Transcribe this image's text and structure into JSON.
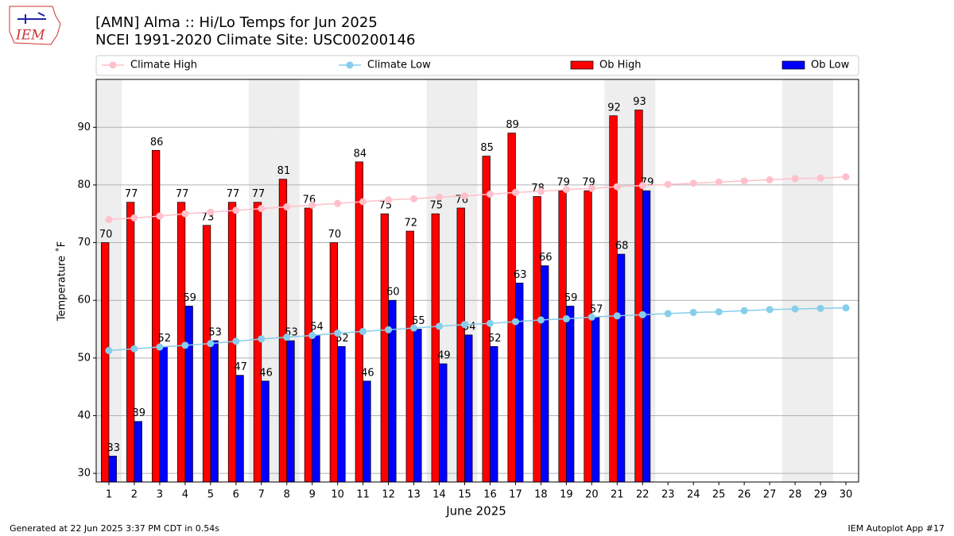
{
  "chart_data": {
    "type": "bar",
    "title": "[AMN] Alma :: Hi/Lo Temps for Jun 2025",
    "subtitle": "NCEI 1991-2020 Climate Site: USC00200146",
    "logo": "IEM",
    "x_label": "June 2025",
    "y_label": "Temperature ˚F",
    "footer_left": "Generated at 22 Jun 2025 3:37 PM CDT in 0.54s",
    "footer_right": "IEM Autoplot App #17",
    "x": [
      1,
      2,
      3,
      4,
      5,
      6,
      7,
      8,
      9,
      10,
      11,
      12,
      13,
      14,
      15,
      16,
      17,
      18,
      19,
      20,
      21,
      22,
      23,
      24,
      25,
      26,
      27,
      28,
      29,
      30
    ],
    "xlim": [
      0.5,
      30.5
    ],
    "xticks": [
      1,
      2,
      3,
      4,
      5,
      6,
      7,
      8,
      9,
      10,
      11,
      12,
      13,
      14,
      15,
      16,
      17,
      18,
      19,
      20,
      21,
      22,
      23,
      24,
      25,
      26,
      27,
      28,
      29,
      30
    ],
    "ylim": [
      28.5,
      98.3
    ],
    "yticks": [
      30,
      40,
      50,
      60,
      70,
      80,
      90
    ],
    "grid": true,
    "legend": "top",
    "shaded_days": [
      1,
      7,
      8,
      14,
      15,
      21,
      22,
      28,
      29
    ],
    "shade_color": "#eeeeee",
    "series": [
      {
        "name": "Climate High",
        "type": "line",
        "color": "#ffc0cb",
        "values": [
          74.0,
          74.3,
          74.6,
          75.0,
          75.3,
          75.6,
          75.9,
          76.2,
          76.5,
          76.8,
          77.1,
          77.4,
          77.6,
          77.9,
          78.1,
          78.4,
          78.7,
          78.9,
          79.2,
          79.4,
          79.7,
          79.9,
          80.1,
          80.3,
          80.5,
          80.7,
          80.9,
          81.1,
          81.2,
          81.4
        ]
      },
      {
        "name": "Climate Low",
        "type": "line",
        "color": "#87ceeb",
        "values": [
          51.3,
          51.6,
          51.9,
          52.2,
          52.5,
          52.9,
          53.3,
          53.6,
          53.9,
          54.3,
          54.6,
          54.9,
          55.2,
          55.5,
          55.8,
          56.0,
          56.3,
          56.6,
          56.8,
          57.1,
          57.3,
          57.5,
          57.7,
          57.9,
          58.0,
          58.2,
          58.4,
          58.5,
          58.6,
          58.7
        ]
      },
      {
        "name": "Ob High",
        "type": "bar",
        "color": "#ff0000",
        "values": [
          70,
          77,
          86,
          77,
          73,
          77,
          77,
          81,
          76,
          70,
          84,
          75,
          72,
          75,
          76,
          85,
          89,
          78,
          79,
          79,
          92,
          93,
          null,
          null,
          null,
          null,
          null,
          null,
          null,
          null
        ]
      },
      {
        "name": "Ob Low",
        "type": "bar",
        "color": "#0000ff",
        "values": [
          33,
          39,
          52,
          59,
          53,
          47,
          46,
          53,
          54,
          52,
          46,
          60,
          55,
          49,
          54,
          52,
          63,
          66,
          59,
          57,
          68,
          79,
          null,
          null,
          null,
          null,
          null,
          null,
          null,
          null
        ]
      }
    ]
  }
}
